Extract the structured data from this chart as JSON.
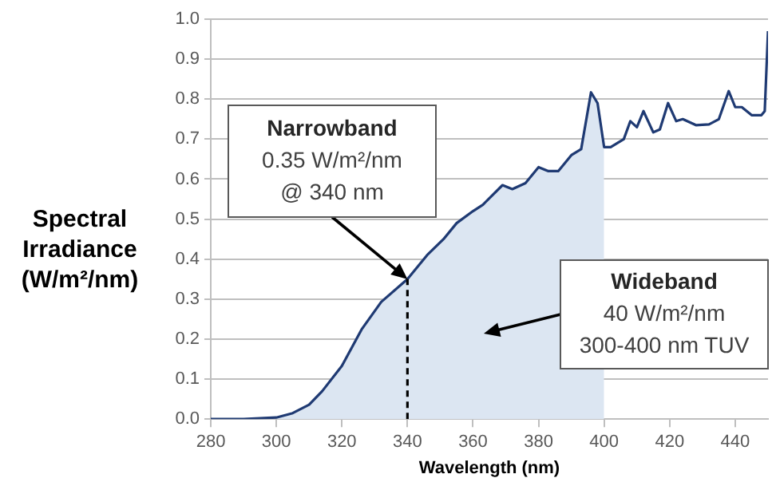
{
  "chart_data": {
    "type": "line",
    "xlabel": "Wavelength (nm)",
    "ylabel": "Spectral Irradiance (W/m²/nm)",
    "xlim": [
      280,
      450
    ],
    "xticks": [
      280,
      300,
      320,
      340,
      360,
      380,
      400,
      420,
      440
    ],
    "ylim": [
      0,
      1
    ],
    "yticks": [
      {
        "value": 0,
        "label": "0.0"
      },
      {
        "value": 0.1,
        "label": "0.1"
      },
      {
        "value": 0.2,
        "label": "0.2"
      },
      {
        "value": 0.3,
        "label": "0.3"
      },
      {
        "value": 0.4,
        "label": "0.4"
      },
      {
        "value": 0.5,
        "label": "0.5"
      },
      {
        "value": 0.6,
        "label": "0.6"
      },
      {
        "value": 0.7,
        "label": "0.7"
      },
      {
        "value": 0.8,
        "label": "0.8"
      },
      {
        "value": 0.9,
        "label": "0.9"
      },
      {
        "value": 1,
        "label": "1.0"
      }
    ],
    "grid": "y",
    "legend": false,
    "marker": "none",
    "series": [
      {
        "type": "area",
        "color": "#dce6f2",
        "x": [
          300,
          305,
          310,
          314,
          320,
          326,
          332,
          340,
          346,
          351,
          355,
          360,
          363,
          369,
          372,
          376,
          380,
          383,
          386,
          390,
          393,
          396,
          398,
          400
        ],
        "values": [
          0.004,
          0.015,
          0.036,
          0.07,
          0.133,
          0.224,
          0.293,
          0.35,
          0.41,
          0.45,
          0.49,
          0.52,
          0.536,
          0.585,
          0.575,
          0.59,
          0.63,
          0.62,
          0.62,
          0.66,
          0.675,
          0.817,
          0.79,
          0.68
        ]
      },
      {
        "type": "line",
        "color": "#000000",
        "line_style": "dashed",
        "x": [
          340,
          340
        ],
        "values": [
          0,
          0.35
        ]
      },
      {
        "color": "#1f3a73",
        "x": [
          280,
          290,
          300,
          305,
          310,
          314,
          320,
          326,
          332,
          340,
          346,
          351,
          355,
          360,
          363,
          369,
          372,
          376,
          380,
          383,
          386,
          390,
          393,
          396,
          398,
          400,
          402,
          406,
          408,
          410,
          412,
          415,
          417,
          419.5,
          422,
          424,
          428,
          432,
          435,
          438,
          440,
          442,
          445,
          448,
          449,
          450
        ],
        "values": [
          0,
          0,
          0.004,
          0.015,
          0.036,
          0.07,
          0.133,
          0.224,
          0.293,
          0.35,
          0.41,
          0.45,
          0.49,
          0.52,
          0.536,
          0.585,
          0.575,
          0.59,
          0.63,
          0.62,
          0.62,
          0.66,
          0.675,
          0.817,
          0.79,
          0.68,
          0.68,
          0.7,
          0.745,
          0.73,
          0.77,
          0.717,
          0.724,
          0.79,
          0.745,
          0.75,
          0.735,
          0.737,
          0.75,
          0.82,
          0.78,
          0.78,
          0.76,
          0.76,
          0.77,
          0.97
        ]
      }
    ],
    "annotations": [
      {
        "text": "Narrowband\n0.35 W/m²/nm\n@ 340 nm",
        "x": 340,
        "y": 0.35
      },
      "Wideband\n40 W/m²/nm\n300-400 nm TUV"
    ]
  }
}
